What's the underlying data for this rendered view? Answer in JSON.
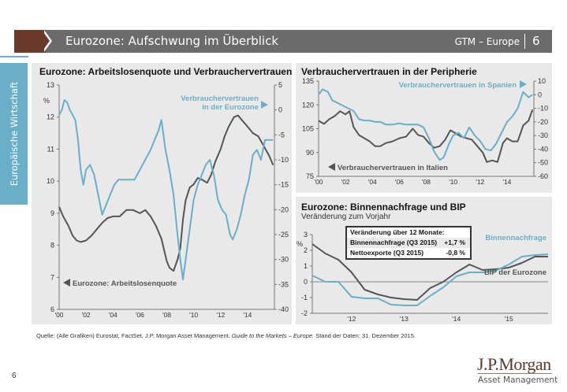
{
  "header": {
    "title": "Eurozone: Aufschwung im Überblick",
    "section": "GTM – Europe",
    "page": "6"
  },
  "sidebar": {
    "label": "Europäische Wirtschaft"
  },
  "colors": {
    "blue": "#6aaec8",
    "gray": "#555555",
    "brown": "#6b3a2a",
    "bar": "#6b6b6b"
  },
  "footer": {
    "source_prefix": "Quelle: (Alle Grafiken) Eurostat, FactSet, J.P. Morgan Asset Management. ",
    "source_italic": "Guide to the Markets – Europe.",
    "source_suffix": " Stand der Daten: 31. Dezember 2015.",
    "page_number": "6",
    "logo_main": "J.P.Morgan",
    "logo_sub": "Asset Management"
  },
  "chart_data": [
    {
      "type": "line",
      "title": "Eurozone: Arbeitslosenquote und Verbrauchervertrauen",
      "x_ticks": [
        "'00",
        "'02",
        "'04",
        "'06",
        "'08",
        "'10",
        "'12",
        "'14"
      ],
      "x_range": [
        2000,
        2016
      ],
      "y_left": {
        "label": "%",
        "ticks": [
          6,
          7,
          8,
          9,
          10,
          11,
          12,
          13
        ],
        "range": [
          6,
          13
        ]
      },
      "y_right": {
        "ticks": [
          5,
          0,
          -5,
          -10,
          -15,
          -20,
          -25,
          -30,
          -35,
          -40
        ],
        "range": [
          -40,
          5
        ]
      },
      "series": [
        {
          "name": "Eurozone: Arbeitslosenquote",
          "axis": "left",
          "color": "#555555",
          "legend_label": "Eurozone: Arbeitslosenquote",
          "points": [
            [
              2000.0,
              9.2
            ],
            [
              2000.3,
              8.9
            ],
            [
              2000.7,
              8.6
            ],
            [
              2001.0,
              8.3
            ],
            [
              2001.3,
              8.15
            ],
            [
              2001.6,
              8.1
            ],
            [
              2002.0,
              8.15
            ],
            [
              2002.4,
              8.3
            ],
            [
              2002.8,
              8.5
            ],
            [
              2003.2,
              8.7
            ],
            [
              2003.6,
              8.85
            ],
            [
              2004.0,
              8.9
            ],
            [
              2004.5,
              8.9
            ],
            [
              2005.0,
              9.1
            ],
            [
              2005.5,
              9.1
            ],
            [
              2006.0,
              9.0
            ],
            [
              2006.4,
              9.1
            ],
            [
              2006.8,
              8.9
            ],
            [
              2007.2,
              8.6
            ],
            [
              2007.6,
              8.2
            ],
            [
              2008.0,
              7.5
            ],
            [
              2008.2,
              7.3
            ],
            [
              2008.5,
              7.2
            ],
            [
              2008.8,
              7.55
            ],
            [
              2009.0,
              7.9
            ],
            [
              2009.2,
              8.8
            ],
            [
              2009.4,
              9.4
            ],
            [
              2009.7,
              9.8
            ],
            [
              2010.0,
              9.9
            ],
            [
              2010.3,
              10.1
            ],
            [
              2010.6,
              10.05
            ],
            [
              2011.0,
              9.95
            ],
            [
              2011.3,
              10.2
            ],
            [
              2011.6,
              10.6
            ],
            [
              2012.0,
              11.0
            ],
            [
              2012.3,
              11.4
            ],
            [
              2012.6,
              11.7
            ],
            [
              2013.0,
              12.0
            ],
            [
              2013.3,
              12.05
            ],
            [
              2013.6,
              11.9
            ],
            [
              2014.0,
              11.7
            ],
            [
              2014.4,
              11.5
            ],
            [
              2014.8,
              11.4
            ],
            [
              2015.2,
              11.1
            ],
            [
              2015.6,
              10.8
            ],
            [
              2015.9,
              10.5
            ]
          ]
        },
        {
          "name": "Verbrauchervertrauen in der Eurozone",
          "axis": "right",
          "color": "#6aaec8",
          "legend_label": "Verbrauchervertrauen in der Eurozone",
          "points": [
            [
              2000.0,
              -1
            ],
            [
              2000.2,
              0
            ],
            [
              2000.4,
              2
            ],
            [
              2000.6,
              1.5
            ],
            [
              2000.8,
              0
            ],
            [
              2001.0,
              -1
            ],
            [
              2001.2,
              -2
            ],
            [
              2001.4,
              -6
            ],
            [
              2001.6,
              -12
            ],
            [
              2001.8,
              -15
            ],
            [
              2002.0,
              -12
            ],
            [
              2002.3,
              -11
            ],
            [
              2002.6,
              -13
            ],
            [
              2002.9,
              -17
            ],
            [
              2003.2,
              -21
            ],
            [
              2003.5,
              -19
            ],
            [
              2003.8,
              -17
            ],
            [
              2004.1,
              -15
            ],
            [
              2004.4,
              -14
            ],
            [
              2004.8,
              -14
            ],
            [
              2005.2,
              -14
            ],
            [
              2005.6,
              -14
            ],
            [
              2006.0,
              -12
            ],
            [
              2006.4,
              -10
            ],
            [
              2006.8,
              -8
            ],
            [
              2007.1,
              -6
            ],
            [
              2007.4,
              -4
            ],
            [
              2007.6,
              -2
            ],
            [
              2007.9,
              -8
            ],
            [
              2008.2,
              -12
            ],
            [
              2008.5,
              -17
            ],
            [
              2008.8,
              -25
            ],
            [
              2009.0,
              -30
            ],
            [
              2009.2,
              -34
            ],
            [
              2009.4,
              -30
            ],
            [
              2009.7,
              -24
            ],
            [
              2010.0,
              -18
            ],
            [
              2010.3,
              -15
            ],
            [
              2010.6,
              -13
            ],
            [
              2010.9,
              -11
            ],
            [
              2011.2,
              -10
            ],
            [
              2011.5,
              -13
            ],
            [
              2011.8,
              -18
            ],
            [
              2012.1,
              -20
            ],
            [
              2012.4,
              -21
            ],
            [
              2012.7,
              -25
            ],
            [
              2012.9,
              -26
            ],
            [
              2013.2,
              -24
            ],
            [
              2013.5,
              -21
            ],
            [
              2013.8,
              -17
            ],
            [
              2014.1,
              -14
            ],
            [
              2014.4,
              -9
            ],
            [
              2014.7,
              -8
            ],
            [
              2015.0,
              -10
            ],
            [
              2015.3,
              -6
            ],
            [
              2015.6,
              -6
            ],
            [
              2015.9,
              -6
            ]
          ]
        }
      ]
    },
    {
      "type": "line",
      "title": "Verbrauchervertrauen in der Peripherie",
      "x_ticks": [
        "'00",
        "'02",
        "'04",
        "'06",
        "'08",
        "'10",
        "'12",
        "'14"
      ],
      "x_range": [
        2000,
        2016
      ],
      "y_left": {
        "ticks": [
          75,
          90,
          105,
          120,
          135
        ],
        "range": [
          75,
          135
        ]
      },
      "y_right": {
        "ticks": [
          10,
          0,
          -10,
          -20,
          -30,
          -40,
          -50,
          -60
        ],
        "range": [
          -60,
          10
        ]
      },
      "series": [
        {
          "name": "Verbrauchervertrauen in Italien",
          "axis": "left",
          "color": "#555555",
          "legend_label": "Verbrauchervertrauen in Italien",
          "points": [
            [
              2000.0,
              110
            ],
            [
              2000.4,
              108
            ],
            [
              2000.8,
              111
            ],
            [
              2001.2,
              113
            ],
            [
              2001.6,
              116
            ],
            [
              2002.0,
              114
            ],
            [
              2002.3,
              116
            ],
            [
              2002.6,
              106
            ],
            [
              2003.0,
              101
            ],
            [
              2003.4,
              99
            ],
            [
              2003.8,
              97
            ],
            [
              2004.2,
              94
            ],
            [
              2004.6,
              94
            ],
            [
              2005.0,
              96
            ],
            [
              2005.5,
              97
            ],
            [
              2006.0,
              99
            ],
            [
              2006.5,
              100
            ],
            [
              2007.0,
              105
            ],
            [
              2007.4,
              101
            ],
            [
              2007.8,
              100
            ],
            [
              2008.2,
              96
            ],
            [
              2008.6,
              93
            ],
            [
              2009.0,
              94
            ],
            [
              2009.4,
              98
            ],
            [
              2009.8,
              104
            ],
            [
              2010.2,
              102
            ],
            [
              2010.6,
              100
            ],
            [
              2011.0,
              99
            ],
            [
              2011.4,
              98
            ],
            [
              2011.8,
              94
            ],
            [
              2012.2,
              90
            ],
            [
              2012.5,
              84
            ],
            [
              2012.9,
              85
            ],
            [
              2013.3,
              84
            ],
            [
              2013.7,
              96
            ],
            [
              2014.0,
              99
            ],
            [
              2014.4,
              97
            ],
            [
              2014.8,
              97
            ],
            [
              2015.2,
              107
            ],
            [
              2015.6,
              110
            ],
            [
              2015.9,
              117
            ]
          ]
        },
        {
          "name": "Verbrauchervertrauen in Spanien",
          "axis": "right",
          "color": "#6aaec8",
          "legend_label": "Verbrauchervertrauen in Spanien",
          "points": [
            [
              2000.0,
              0
            ],
            [
              2000.3,
              4
            ],
            [
              2000.7,
              2
            ],
            [
              2001.0,
              -4
            ],
            [
              2001.4,
              -6
            ],
            [
              2001.8,
              -8
            ],
            [
              2002.2,
              -10
            ],
            [
              2002.6,
              -12
            ],
            [
              2003.0,
              -18
            ],
            [
              2003.4,
              -19
            ],
            [
              2003.8,
              -19
            ],
            [
              2004.2,
              -20
            ],
            [
              2004.6,
              -20
            ],
            [
              2005.0,
              -22
            ],
            [
              2005.5,
              -22
            ],
            [
              2006.0,
              -21
            ],
            [
              2006.5,
              -22
            ],
            [
              2007.0,
              -22
            ],
            [
              2007.4,
              -22
            ],
            [
              2007.8,
              -24
            ],
            [
              2008.2,
              -32
            ],
            [
              2008.6,
              -42
            ],
            [
              2009.0,
              -48
            ],
            [
              2009.3,
              -46
            ],
            [
              2009.7,
              -36
            ],
            [
              2010.0,
              -30
            ],
            [
              2010.4,
              -28
            ],
            [
              2010.8,
              -32
            ],
            [
              2011.2,
              -24
            ],
            [
              2011.6,
              -30
            ],
            [
              2012.0,
              -34
            ],
            [
              2012.4,
              -40
            ],
            [
              2012.8,
              -41
            ],
            [
              2013.2,
              -36
            ],
            [
              2013.6,
              -28
            ],
            [
              2014.0,
              -20
            ],
            [
              2014.4,
              -16
            ],
            [
              2014.8,
              -10
            ],
            [
              2015.2,
              2
            ],
            [
              2015.6,
              -2
            ],
            [
              2015.9,
              0
            ]
          ]
        }
      ]
    },
    {
      "type": "line",
      "title": "Eurozone: Binnennachfrage und BIP",
      "subtitle": "Veränderung zum Vorjahr",
      "x_ticks": [
        "'12",
        "'13",
        "'14",
        "'15"
      ],
      "x_range": [
        2011.25,
        2015.75
      ],
      "y_left": {
        "label": "%",
        "ticks": [
          -2,
          -1,
          0,
          1,
          2,
          3
        ],
        "range": [
          -2,
          3
        ]
      },
      "series": [
        {
          "name": "BIP der Eurozone",
          "color": "#555555",
          "legend_label": "BIP der Eurozone",
          "points": [
            [
              2011.25,
              2.4
            ],
            [
              2011.5,
              1.8
            ],
            [
              2011.75,
              1.4
            ],
            [
              2012.0,
              0.6
            ],
            [
              2012.25,
              -0.5
            ],
            [
              2012.5,
              -0.8
            ],
            [
              2012.75,
              -1.0
            ],
            [
              2013.0,
              -1.1
            ],
            [
              2013.25,
              -1.15
            ],
            [
              2013.5,
              -0.4
            ],
            [
              2013.75,
              0.0
            ],
            [
              2014.0,
              0.6
            ],
            [
              2014.25,
              1.1
            ],
            [
              2014.5,
              0.75
            ],
            [
              2014.75,
              0.8
            ],
            [
              2015.0,
              0.9
            ],
            [
              2015.25,
              1.2
            ],
            [
              2015.5,
              1.6
            ],
            [
              2015.75,
              1.6
            ]
          ]
        },
        {
          "name": "Binnennachfrage",
          "color": "#6aaec8",
          "legend_label": "Binnennachfrage",
          "points": [
            [
              2011.25,
              0.4
            ],
            [
              2011.5,
              0.0
            ],
            [
              2011.75,
              0.0
            ],
            [
              2012.0,
              -0.95
            ],
            [
              2012.25,
              -1.05
            ],
            [
              2012.5,
              -1.05
            ],
            [
              2012.75,
              -1.45
            ],
            [
              2013.0,
              -1.5
            ],
            [
              2013.25,
              -1.5
            ],
            [
              2013.5,
              -0.9
            ],
            [
              2013.75,
              -0.35
            ],
            [
              2014.0,
              0.35
            ],
            [
              2014.25,
              0.6
            ],
            [
              2014.5,
              0.6
            ],
            [
              2014.75,
              0.7
            ],
            [
              2015.0,
              1.1
            ],
            [
              2015.25,
              1.6
            ],
            [
              2015.5,
              1.7
            ],
            [
              2015.75,
              1.75
            ]
          ]
        }
      ],
      "annotation_box": {
        "title": "Veränderung über 12 Monate:",
        "rows": [
          {
            "label": "Binnennachfrage (Q3 2015)",
            "value": "+1,7 %"
          },
          {
            "label": "Nettoexporte (Q3 2015)",
            "value": "-0,8 %"
          }
        ]
      }
    }
  ]
}
